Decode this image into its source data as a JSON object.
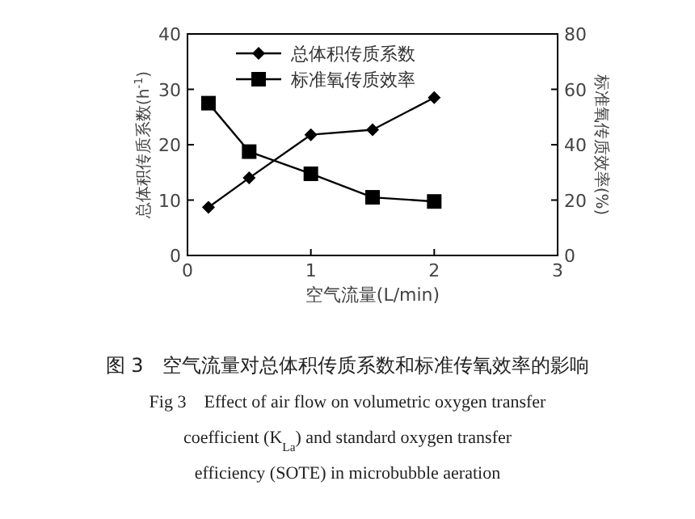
{
  "chart_data": {
    "type": "line",
    "xlabel": "空气流量(L/min)",
    "ylabel": "总体积传质系数(h$^{-1}$)",
    "y2label": "标准氧传质效率(%)",
    "x": [
      0.17,
      0.5,
      1,
      1.5,
      2
    ],
    "series": [
      {
        "name": "总体积传质系数",
        "color": "#000000",
        "values": [
          8.7,
          14,
          21.8,
          22.7,
          28.5
        ],
        "marker": "diamond"
      },
      {
        "name": "标准氧传质效率",
        "color": "#000000",
        "values": [
          55,
          37.5,
          29.5,
          21,
          19.5
        ],
        "marker": "square",
        "axis": "y2"
      }
    ],
    "xlim": [
      0,
      3
    ],
    "xticks": [
      0,
      1,
      2,
      3
    ],
    "ylim": [
      0,
      40
    ],
    "yticks": [
      0,
      10,
      20,
      30,
      40
    ],
    "y2lim": [
      0,
      80
    ],
    "y2ticks": [
      0,
      20,
      40,
      60,
      80
    ],
    "legend": "top left",
    "grid": false,
    "line_style": "solid",
    "annotations": [
      "图 3　空气流量对总体积传质系数和标准传氧效率的影响",
      "Fig 3　Effect of air flow on volumetric oxygen transfer",
      "coefficient (K$_{La}$) and standard oxygen transfer",
      "efficiency (SOTE) in microbubble aeration"
    ]
  }
}
